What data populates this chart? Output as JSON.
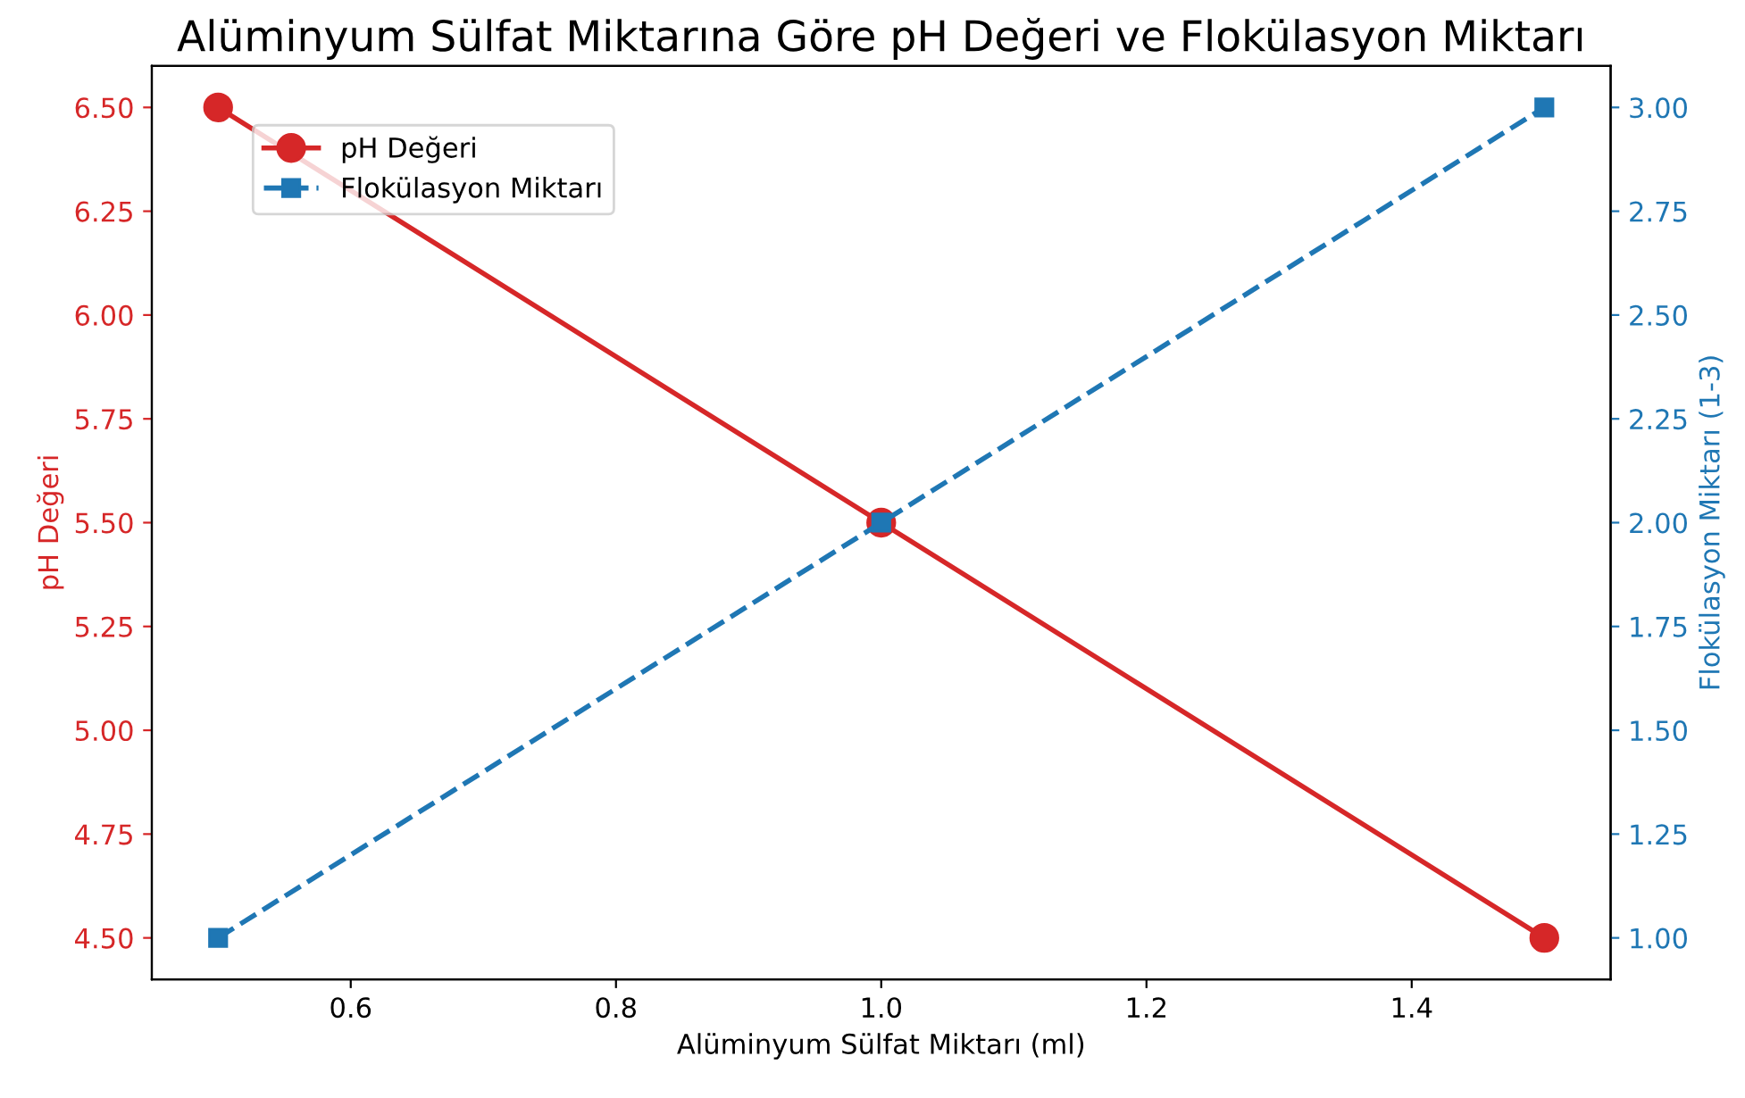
{
  "chart_data": {
    "type": "line",
    "title": "Alüminyum Sülfat Miktarına Göre pH Değeri ve Flokülasyon Miktarı",
    "xlabel": "Alüminyum Sülfat Miktarı (ml)",
    "ylabel": "pH Değeri",
    "y2label": "Flokülasyon Miktarı (1-3)",
    "x": [
      0.5,
      1.0,
      1.5
    ],
    "series": [
      {
        "name": "pH Değeri",
        "color": "#d62728",
        "values": [
          6.5,
          5.5,
          4.5
        ],
        "marker": "circle",
        "line_style": "solid"
      },
      {
        "name": "Flokülasyon Miktarı",
        "color": "#1f77b4",
        "values": [
          1.0,
          2.0,
          3.0
        ],
        "marker": "square",
        "line_style": "dashed",
        "axis": "y2"
      }
    ],
    "xlim": [
      0.45,
      1.55
    ],
    "xticks": [
      0.6,
      0.8,
      {
        "value": 1.0,
        "label": "1.0"
      },
      1.2,
      1.4
    ],
    "ylim": [
      4.4,
      6.6
    ],
    "yticks": [
      {
        "value": 4.5,
        "label": "4.50"
      },
      {
        "value": 4.75,
        "label": "4.75"
      },
      {
        "value": 5.0,
        "label": "5.00"
      },
      {
        "value": 5.25,
        "label": "5.25"
      },
      {
        "value": 5.5,
        "label": "5.50"
      },
      {
        "value": 5.75,
        "label": "5.75"
      },
      {
        "value": 6.0,
        "label": "6.00"
      },
      {
        "value": 6.25,
        "label": "6.25"
      },
      {
        "value": 6.5,
        "label": "6.50"
      }
    ],
    "y2lim": [
      0.9,
      3.1
    ],
    "y2ticks": [
      {
        "value": 1.0,
        "label": "1.00"
      },
      {
        "value": 1.25,
        "label": "1.25"
      },
      {
        "value": 1.5,
        "label": "1.50"
      },
      {
        "value": 1.75,
        "label": "1.75"
      },
      {
        "value": 2.0,
        "label": "2.00"
      },
      {
        "value": 2.25,
        "label": "2.25"
      },
      {
        "value": 2.5,
        "label": "2.50"
      },
      {
        "value": 2.75,
        "label": "2.75"
      },
      {
        "value": 3.0,
        "label": "3.00"
      }
    ],
    "grid": false,
    "legend": "top left"
  }
}
